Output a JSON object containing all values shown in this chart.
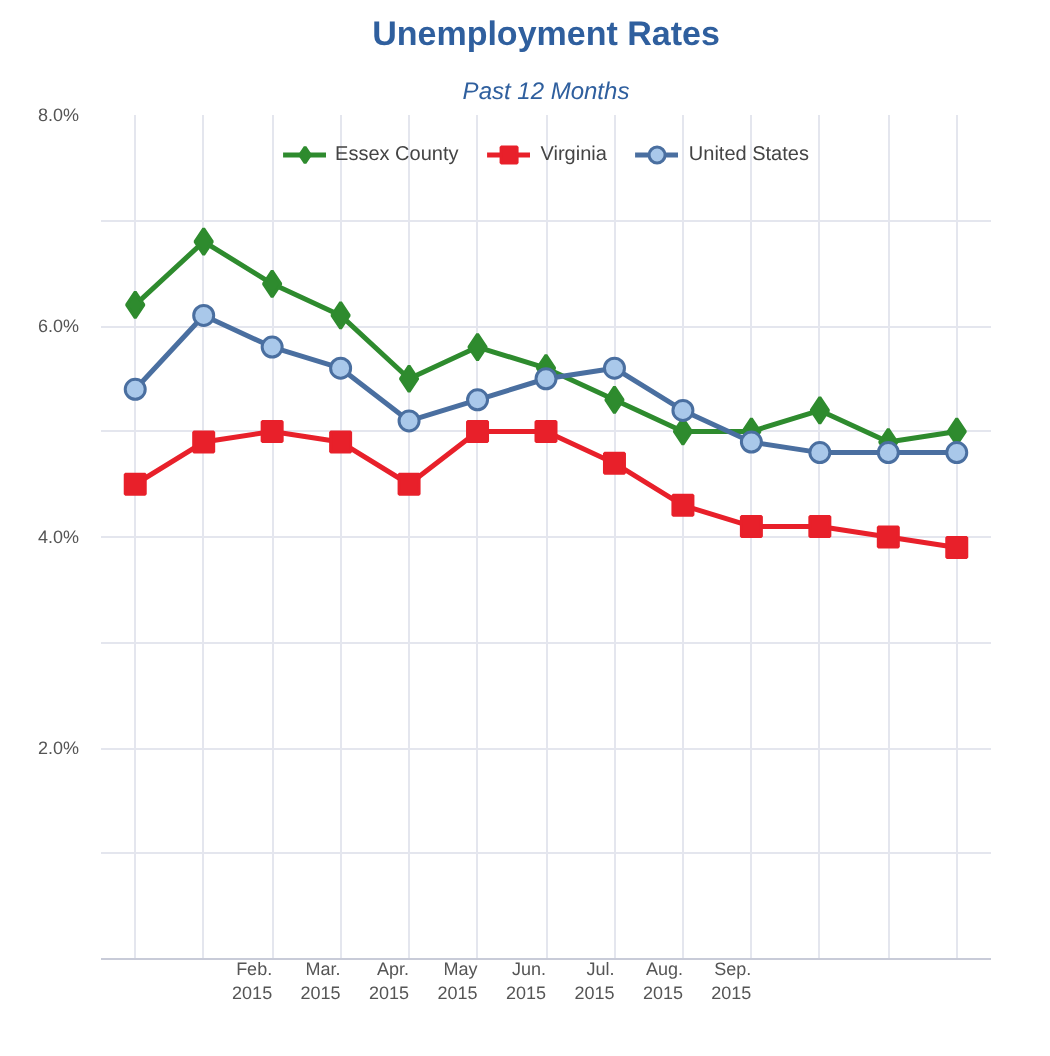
{
  "chart_data": {
    "type": "line",
    "title": "Unemployment Rates",
    "subtitle": "Past 12 Months",
    "categories": [
      null,
      null,
      "Feb. 2015",
      "Mar. 2015",
      "Apr. 2015",
      "May 2015",
      "Jun. 2015",
      "Jul. 2015",
      "Aug. 2015",
      "Sep. 2015",
      null,
      null,
      null
    ],
    "series": [
      {
        "name": "Essex County",
        "color": "#2e8b2e",
        "marker": "diamond",
        "values": [
          6.2,
          6.8,
          6.4,
          6.1,
          5.5,
          5.8,
          5.6,
          5.3,
          5.0,
          5.0,
          5.2,
          4.9,
          5.0
        ]
      },
      {
        "name": "Virginia",
        "color": "#e8202a",
        "marker": "square",
        "values": [
          4.5,
          4.9,
          5.0,
          4.9,
          4.5,
          5.0,
          5.0,
          4.7,
          4.3,
          4.1,
          4.1,
          4.0,
          3.9
        ]
      },
      {
        "name": "United States",
        "color": "#4a6fa0",
        "marker": "circle",
        "values": [
          5.4,
          6.1,
          5.8,
          5.6,
          5.1,
          5.3,
          5.5,
          5.6,
          5.2,
          4.9,
          4.8,
          4.8,
          4.8
        ]
      }
    ],
    "ylim": [
      0,
      8
    ],
    "yticks": [
      {
        "value": 1,
        "label": null
      },
      {
        "value": 2,
        "label": "2.0%"
      },
      {
        "value": 3,
        "label": null
      },
      {
        "value": 4,
        "label": "4.0%"
      },
      {
        "value": 5,
        "label": null
      },
      {
        "value": 6,
        "label": "6.0%"
      },
      {
        "value": 7,
        "label": null
      },
      {
        "value": 8,
        "label": "8.0%"
      }
    ],
    "grid": true,
    "legend": "top",
    "line_style": "solid"
  }
}
